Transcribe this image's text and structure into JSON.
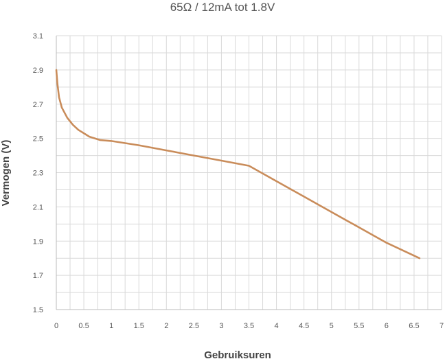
{
  "chart_data": {
    "type": "line",
    "title": "65Ω / 12mA tot 1.8V",
    "xlabel": "Gebruiksuren",
    "ylabel": "Vermogen (V)",
    "xlim": [
      0,
      7
    ],
    "ylim": [
      1.5,
      3.1
    ],
    "x_ticks": [
      "0",
      "0.5",
      "1",
      "1.5",
      "2",
      "2.5",
      "3",
      "3.5",
      "4",
      "4.5",
      "5",
      "5.5",
      "6",
      "6.5",
      "7"
    ],
    "y_ticks": [
      "1.5",
      "1.7",
      "1.9",
      "2.1",
      "2.3",
      "2.5",
      "2.7",
      "2.9",
      "3.1"
    ],
    "grid": true,
    "line_color": "#c98c5a",
    "series": [
      {
        "x": [
          0,
          0.02,
          0.05,
          0.1,
          0.15,
          0.2,
          0.3,
          0.4,
          0.5,
          0.6,
          0.7,
          0.8,
          1.0,
          1.2,
          1.5,
          2.0,
          2.5,
          3.0,
          3.5,
          4.0,
          4.5,
          5.0,
          5.5,
          6.0,
          6.5,
          6.6
        ],
        "y": [
          2.9,
          2.82,
          2.74,
          2.68,
          2.65,
          2.62,
          2.58,
          2.55,
          2.53,
          2.51,
          2.5,
          2.49,
          2.485,
          2.475,
          2.46,
          2.43,
          2.4,
          2.37,
          2.34,
          2.25,
          2.16,
          2.07,
          1.98,
          1.89,
          1.815,
          1.8
        ]
      }
    ]
  }
}
